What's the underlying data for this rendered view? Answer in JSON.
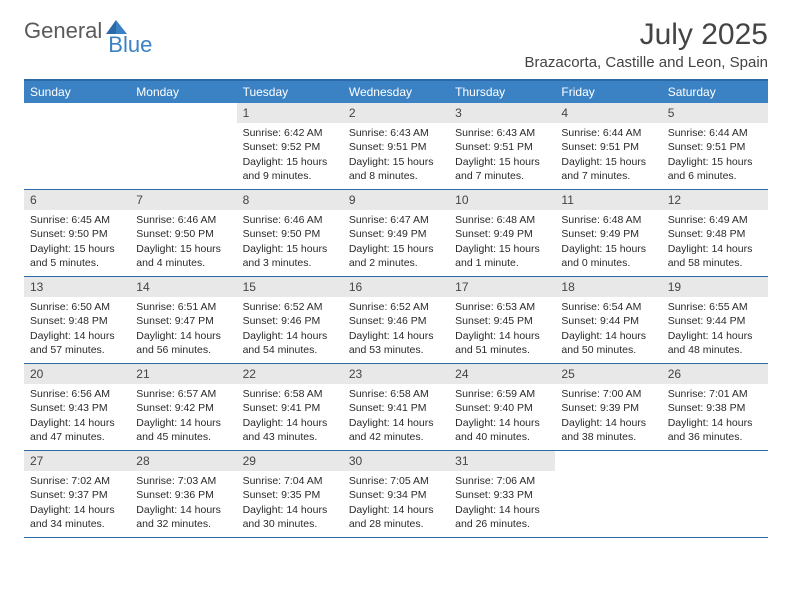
{
  "logo": {
    "part1": "General",
    "part2": "Blue"
  },
  "title": "July 2025",
  "location": "Brazacorta, Castille and Leon, Spain",
  "colors": {
    "header_bg": "#3b82c4",
    "border": "#2a6aa8",
    "daynum_bg": "#e8e8e8",
    "logo_gray": "#5a5a5a",
    "logo_blue": "#3b82c4"
  },
  "weekdays": [
    "Sunday",
    "Monday",
    "Tuesday",
    "Wednesday",
    "Thursday",
    "Friday",
    "Saturday"
  ],
  "weeks": [
    [
      null,
      null,
      {
        "n": "1",
        "sr": "6:42 AM",
        "ss": "9:52 PM",
        "dl": "15 hours and 9 minutes."
      },
      {
        "n": "2",
        "sr": "6:43 AM",
        "ss": "9:51 PM",
        "dl": "15 hours and 8 minutes."
      },
      {
        "n": "3",
        "sr": "6:43 AM",
        "ss": "9:51 PM",
        "dl": "15 hours and 7 minutes."
      },
      {
        "n": "4",
        "sr": "6:44 AM",
        "ss": "9:51 PM",
        "dl": "15 hours and 7 minutes."
      },
      {
        "n": "5",
        "sr": "6:44 AM",
        "ss": "9:51 PM",
        "dl": "15 hours and 6 minutes."
      }
    ],
    [
      {
        "n": "6",
        "sr": "6:45 AM",
        "ss": "9:50 PM",
        "dl": "15 hours and 5 minutes."
      },
      {
        "n": "7",
        "sr": "6:46 AM",
        "ss": "9:50 PM",
        "dl": "15 hours and 4 minutes."
      },
      {
        "n": "8",
        "sr": "6:46 AM",
        "ss": "9:50 PM",
        "dl": "15 hours and 3 minutes."
      },
      {
        "n": "9",
        "sr": "6:47 AM",
        "ss": "9:49 PM",
        "dl": "15 hours and 2 minutes."
      },
      {
        "n": "10",
        "sr": "6:48 AM",
        "ss": "9:49 PM",
        "dl": "15 hours and 1 minute."
      },
      {
        "n": "11",
        "sr": "6:48 AM",
        "ss": "9:49 PM",
        "dl": "15 hours and 0 minutes."
      },
      {
        "n": "12",
        "sr": "6:49 AM",
        "ss": "9:48 PM",
        "dl": "14 hours and 58 minutes."
      }
    ],
    [
      {
        "n": "13",
        "sr": "6:50 AM",
        "ss": "9:48 PM",
        "dl": "14 hours and 57 minutes."
      },
      {
        "n": "14",
        "sr": "6:51 AM",
        "ss": "9:47 PM",
        "dl": "14 hours and 56 minutes."
      },
      {
        "n": "15",
        "sr": "6:52 AM",
        "ss": "9:46 PM",
        "dl": "14 hours and 54 minutes."
      },
      {
        "n": "16",
        "sr": "6:52 AM",
        "ss": "9:46 PM",
        "dl": "14 hours and 53 minutes."
      },
      {
        "n": "17",
        "sr": "6:53 AM",
        "ss": "9:45 PM",
        "dl": "14 hours and 51 minutes."
      },
      {
        "n": "18",
        "sr": "6:54 AM",
        "ss": "9:44 PM",
        "dl": "14 hours and 50 minutes."
      },
      {
        "n": "19",
        "sr": "6:55 AM",
        "ss": "9:44 PM",
        "dl": "14 hours and 48 minutes."
      }
    ],
    [
      {
        "n": "20",
        "sr": "6:56 AM",
        "ss": "9:43 PM",
        "dl": "14 hours and 47 minutes."
      },
      {
        "n": "21",
        "sr": "6:57 AM",
        "ss": "9:42 PM",
        "dl": "14 hours and 45 minutes."
      },
      {
        "n": "22",
        "sr": "6:58 AM",
        "ss": "9:41 PM",
        "dl": "14 hours and 43 minutes."
      },
      {
        "n": "23",
        "sr": "6:58 AM",
        "ss": "9:41 PM",
        "dl": "14 hours and 42 minutes."
      },
      {
        "n": "24",
        "sr": "6:59 AM",
        "ss": "9:40 PM",
        "dl": "14 hours and 40 minutes."
      },
      {
        "n": "25",
        "sr": "7:00 AM",
        "ss": "9:39 PM",
        "dl": "14 hours and 38 minutes."
      },
      {
        "n": "26",
        "sr": "7:01 AM",
        "ss": "9:38 PM",
        "dl": "14 hours and 36 minutes."
      }
    ],
    [
      {
        "n": "27",
        "sr": "7:02 AM",
        "ss": "9:37 PM",
        "dl": "14 hours and 34 minutes."
      },
      {
        "n": "28",
        "sr": "7:03 AM",
        "ss": "9:36 PM",
        "dl": "14 hours and 32 minutes."
      },
      {
        "n": "29",
        "sr": "7:04 AM",
        "ss": "9:35 PM",
        "dl": "14 hours and 30 minutes."
      },
      {
        "n": "30",
        "sr": "7:05 AM",
        "ss": "9:34 PM",
        "dl": "14 hours and 28 minutes."
      },
      {
        "n": "31",
        "sr": "7:06 AM",
        "ss": "9:33 PM",
        "dl": "14 hours and 26 minutes."
      },
      null,
      null
    ]
  ],
  "labels": {
    "sunrise": "Sunrise:",
    "sunset": "Sunset:",
    "daylight": "Daylight:"
  }
}
